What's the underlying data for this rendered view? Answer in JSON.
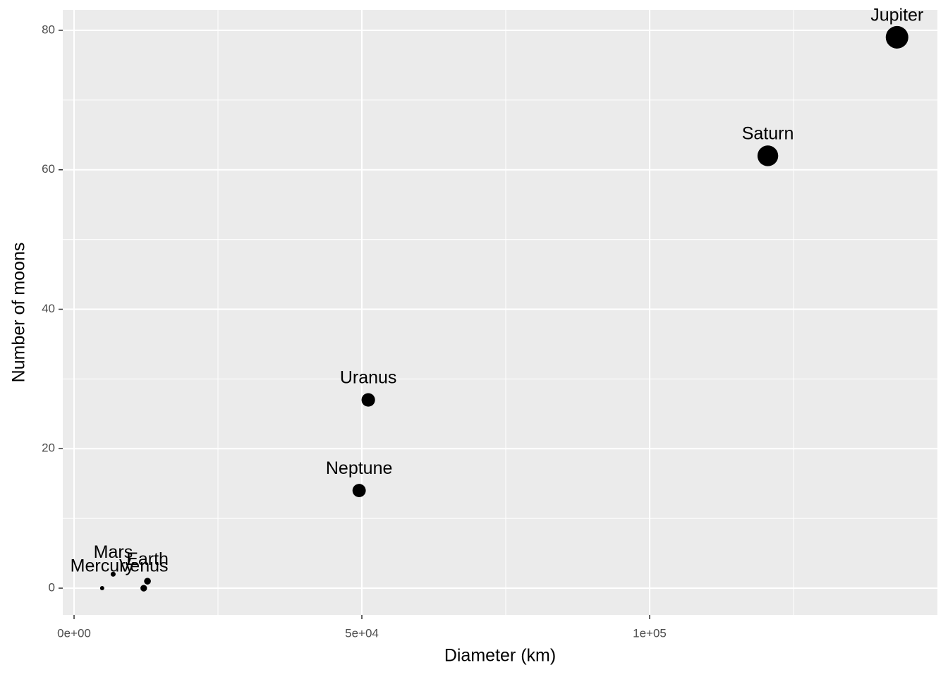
{
  "chart_data": {
    "type": "scatter",
    "x_label": "Diameter (km)",
    "y_label": "Number of moons",
    "point_labels": [
      "Mercury",
      "Venus",
      "Earth",
      "Mars",
      "Jupiter",
      "Saturn",
      "Uranus",
      "Neptune"
    ],
    "x": [
      4879,
      12104,
      12756,
      6792,
      142984,
      120536,
      51118,
      49528
    ],
    "values": [
      0,
      0,
      1,
      2,
      79,
      62,
      27,
      14
    ],
    "color": "#000000",
    "xlim": [
      -1961,
      150000
    ],
    "ylim": [
      -3.84,
      82.93
    ],
    "xticks": [
      {
        "value": 0,
        "label": "0e+00"
      },
      {
        "value": 50000,
        "label": "5e+04"
      },
      {
        "value": 100000,
        "label": "1e+05"
      }
    ],
    "yticks": [
      0,
      20,
      40,
      60,
      80
    ],
    "xminor": [
      25000,
      75000,
      125000
    ],
    "yminor": [
      10,
      30,
      50,
      70
    ],
    "grid": true
  }
}
